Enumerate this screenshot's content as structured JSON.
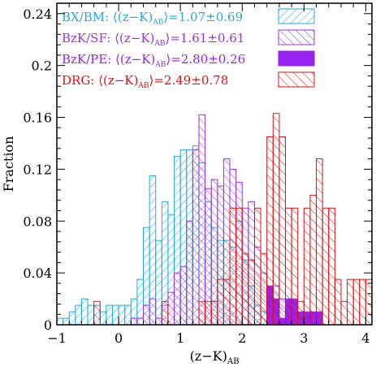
{
  "chart_data": {
    "type": "bar",
    "ylabel": "Fraction",
    "xlabel_main": "(z−K)",
    "xlabel_sub": "AB",
    "xlim": [
      -1,
      4.1
    ],
    "ylim": [
      0,
      0.248
    ],
    "bin_width": 0.1,
    "xticks": [
      -1,
      0,
      1,
      2,
      3,
      4
    ],
    "yticks": [
      0,
      0.04,
      0.08,
      0.12,
      0.16,
      0.2,
      0.24
    ],
    "xtick_labels": [
      "−1",
      "0",
      "1",
      "2",
      "3",
      "4"
    ],
    "ytick_labels": [
      "0",
      "0.04",
      "0.08",
      "0.12",
      "0.16",
      "0.2",
      "0.24"
    ],
    "legend_placement": "top-left",
    "series": [
      {
        "name": "BX/BM",
        "legend_label": "BX/BM: ⟨(z−K)",
        "legend_sub": "AB",
        "legend_value": "⟩=1.07±0.69",
        "color": "#22aadd",
        "hatch": "diag-down",
        "bins": [
          {
            "x0": -1.0,
            "v": 0.005
          },
          {
            "x0": -0.9,
            "v": 0.005
          },
          {
            "x0": -0.8,
            "v": 0.01
          },
          {
            "x0": -0.7,
            "v": 0.015
          },
          {
            "x0": -0.6,
            "v": 0.02
          },
          {
            "x0": -0.5,
            "v": 0.015
          },
          {
            "x0": -0.4,
            "v": 0.015
          },
          {
            "x0": -0.3,
            "v": 0.01
          },
          {
            "x0": -0.2,
            "v": 0.015
          },
          {
            "x0": -0.1,
            "v": 0.015
          },
          {
            "x0": 0.0,
            "v": 0.015
          },
          {
            "x0": 0.1,
            "v": 0.015
          },
          {
            "x0": 0.2,
            "v": 0.02
          },
          {
            "x0": 0.3,
            "v": 0.035
          },
          {
            "x0": 0.4,
            "v": 0.075
          },
          {
            "x0": 0.5,
            "v": 0.115
          },
          {
            "x0": 0.6,
            "v": 0.065
          },
          {
            "x0": 0.7,
            "v": 0.095
          },
          {
            "x0": 0.8,
            "v": 0.085
          },
          {
            "x0": 0.9,
            "v": 0.13
          },
          {
            "x0": 1.0,
            "v": 0.135
          },
          {
            "x0": 1.1,
            "v": 0.135
          },
          {
            "x0": 1.2,
            "v": 0.138
          },
          {
            "x0": 1.3,
            "v": 0.125
          },
          {
            "x0": 1.4,
            "v": 0.095
          },
          {
            "x0": 1.5,
            "v": 0.075
          },
          {
            "x0": 1.6,
            "v": 0.065
          },
          {
            "x0": 1.7,
            "v": 0.065
          },
          {
            "x0": 1.8,
            "v": 0.06
          },
          {
            "x0": 1.9,
            "v": 0.08
          },
          {
            "x0": 2.0,
            "v": 0.05
          },
          {
            "x0": 2.1,
            "v": 0.03
          },
          {
            "x0": 2.2,
            "v": 0.015
          },
          {
            "x0": 2.3,
            "v": 0.01
          },
          {
            "x0": 2.4,
            "v": 0.015
          },
          {
            "x0": 2.5,
            "v": 0.005
          }
        ]
      },
      {
        "name": "BzK/SF",
        "legend_label": "BzK/SF: ⟨(z−K)",
        "legend_sub": "AB",
        "legend_value": "⟩=1.61±0.61",
        "color": "#9933dd",
        "hatch": "diag-up",
        "bins": [
          {
            "x0": 0.2,
            "v": 0.005
          },
          {
            "x0": 0.3,
            "v": 0.005
          },
          {
            "x0": 0.4,
            "v": 0.015
          },
          {
            "x0": 0.5,
            "v": 0.02
          },
          {
            "x0": 0.6,
            "v": 0.005
          },
          {
            "x0": 0.7,
            "v": 0.015
          },
          {
            "x0": 0.8,
            "v": 0.025
          },
          {
            "x0": 0.9,
            "v": 0.04
          },
          {
            "x0": 1.0,
            "v": 0.045
          },
          {
            "x0": 1.1,
            "v": 0.08
          },
          {
            "x0": 1.2,
            "v": 0.135
          },
          {
            "x0": 1.3,
            "v": 0.162
          },
          {
            "x0": 1.4,
            "v": 0.105
          },
          {
            "x0": 1.5,
            "v": 0.112
          },
          {
            "x0": 1.6,
            "v": 0.107
          },
          {
            "x0": 1.7,
            "v": 0.128
          },
          {
            "x0": 1.8,
            "v": 0.12
          },
          {
            "x0": 1.9,
            "v": 0.11
          },
          {
            "x0": 2.0,
            "v": 0.09
          },
          {
            "x0": 2.1,
            "v": 0.095
          },
          {
            "x0": 2.2,
            "v": 0.06
          },
          {
            "x0": 2.3,
            "v": 0.04
          },
          {
            "x0": 2.4,
            "v": 0.025
          },
          {
            "x0": 2.5,
            "v": 0.03
          },
          {
            "x0": 2.6,
            "v": 0.02
          },
          {
            "x0": 2.7,
            "v": 0.01
          }
        ]
      },
      {
        "name": "BzK/PE",
        "legend_label": "BzK/PE: ⟨(z−K)",
        "legend_sub": "AB",
        "legend_value": "⟩=2.80±0.26",
        "color": "#9922ee",
        "hatch": "solid",
        "bins": [
          {
            "x0": 2.4,
            "v": 0.03
          },
          {
            "x0": 2.5,
            "v": 0.02
          },
          {
            "x0": 2.6,
            "v": 0.005
          },
          {
            "x0": 2.7,
            "v": 0.02
          },
          {
            "x0": 2.8,
            "v": 0.02
          },
          {
            "x0": 2.9,
            "v": 0.01
          },
          {
            "x0": 3.0,
            "v": 0.01
          },
          {
            "x0": 3.1,
            "v": 0.01
          },
          {
            "x0": 3.2,
            "v": 0.01
          }
        ]
      },
      {
        "name": "DRG",
        "legend_label": "DRG: ⟨(z−K)",
        "legend_sub": "AB",
        "legend_value": "⟩=2.49±0.78",
        "color": "#dd1111",
        "hatch": "diag-up-wide",
        "bins": [
          {
            "x0": -0.4,
            "v": 0.018
          },
          {
            "x0": 0.7,
            "v": 0.018
          },
          {
            "x0": 1.3,
            "v": 0.018
          },
          {
            "x0": 1.4,
            "v": 0.018
          },
          {
            "x0": 1.5,
            "v": 0.018
          },
          {
            "x0": 1.6,
            "v": 0.035
          },
          {
            "x0": 1.7,
            "v": 0.035
          },
          {
            "x0": 1.8,
            "v": 0.09
          },
          {
            "x0": 1.9,
            "v": 0.09
          },
          {
            "x0": 2.0,
            "v": 0.055
          },
          {
            "x0": 2.1,
            "v": 0.05
          },
          {
            "x0": 2.2,
            "v": 0.09
          },
          {
            "x0": 2.3,
            "v": 0.055
          },
          {
            "x0": 2.4,
            "v": 0.145
          },
          {
            "x0": 2.5,
            "v": 0.163
          },
          {
            "x0": 2.6,
            "v": 0.145
          },
          {
            "x0": 2.7,
            "v": 0.09
          },
          {
            "x0": 2.8,
            "v": 0.09
          },
          {
            "x0": 2.9,
            "v": 0.018
          },
          {
            "x0": 3.0,
            "v": 0.09
          },
          {
            "x0": 3.1,
            "v": 0.1
          },
          {
            "x0": 3.2,
            "v": 0.128
          },
          {
            "x0": 3.3,
            "v": 0.09
          },
          {
            "x0": 3.4,
            "v": 0.09
          },
          {
            "x0": 3.5,
            "v": 0.035
          },
          {
            "x0": 3.6,
            "v": 0.018
          },
          {
            "x0": 3.7,
            "v": 0.035
          },
          {
            "x0": 3.8,
            "v": 0.035
          },
          {
            "x0": 3.9,
            "v": 0.035
          },
          {
            "x0": 4.0,
            "v": 0.035
          }
        ]
      }
    ]
  }
}
